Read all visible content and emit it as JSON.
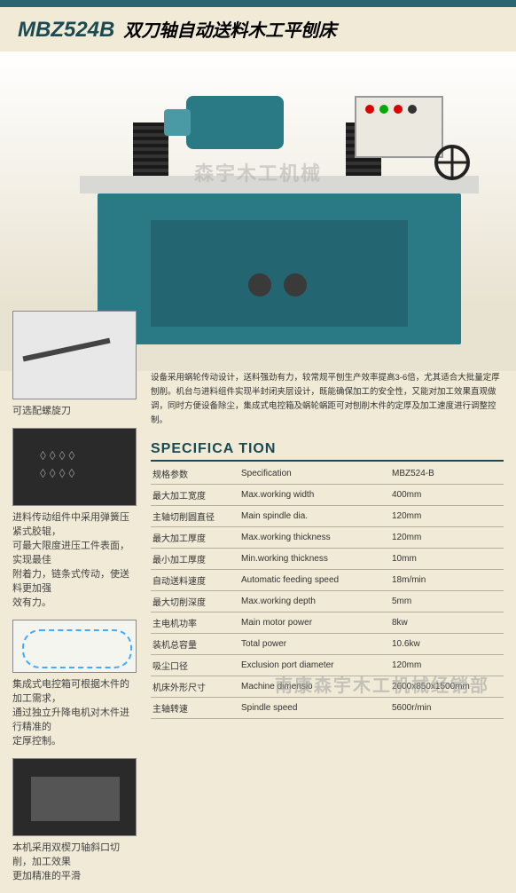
{
  "header": {
    "model": "MBZ524B",
    "title": "双刀轴自动送料木工平刨床"
  },
  "watermarks": {
    "top": "森宇木工机械",
    "bottom": "南康森宇木工机械经销部"
  },
  "sidebar": {
    "thumb1_caption": "可选配螺旋刀",
    "desc2a": "进料传动组件中采用弹簧压紧式胶辊，",
    "desc2b": "可最大限度进压工件表面，实现最佳",
    "desc2c": "附着力，链条式传动，使送料更加强",
    "desc2d": "效有力。",
    "desc3a": "集成式电控箱可根据木件的加工需求，",
    "desc3b": "通过独立升降电机对木件进行精准的",
    "desc3c": "定厚控制。",
    "desc4a": "本机采用双楔刀轴斜口切削，加工效果",
    "desc4b": "更加精准的平滑"
  },
  "description": "设备采用蜗轮传动设计，送料强劲有力，较常规平刨生产效率提高3-6倍，尤其适合大批量定厚刨削。机台与进料组件实现半封闭夹层设计，既能确保加工的安全性，又能对加工效果直观做调，同时方便设备除尘，集成式电控箱及蜗轮蜗距可对刨削木件的定厚及加工速度进行调整控制。",
  "spec": {
    "heading": "SPECIFICA TION",
    "rows": [
      {
        "zh": "规格参数",
        "en": "Specification",
        "val": "MBZ524-B"
      },
      {
        "zh": "最大加工宽度",
        "en": "Max.working width",
        "val": "400mm"
      },
      {
        "zh": "主轴切削圆直径",
        "en": "Main spindle dia.",
        "val": "120mm"
      },
      {
        "zh": "最大加工厚度",
        "en": "Max.working thickness",
        "val": "120mm"
      },
      {
        "zh": "最小加工厚度",
        "en": "Min.working thickness",
        "val": "10mm"
      },
      {
        "zh": "自动送料速度",
        "en": "Automatic feeding speed",
        "val": "18m/min"
      },
      {
        "zh": "最大切削深度",
        "en": "Max.working depth",
        "val": "5mm"
      },
      {
        "zh": "主电机功率",
        "en": "Main motor power",
        "val": "8kw"
      },
      {
        "zh": "装机总容量",
        "en": "Total power",
        "val": "10.6kw"
      },
      {
        "zh": "吸尘口径",
        "en": "Exclusion port diameter",
        "val": "120mm"
      },
      {
        "zh": "机床外形尺寸",
        "en": "Machine dimensio",
        "val": "2600x850x1500mm"
      },
      {
        "zh": "主轴转速",
        "en": "Spindle speed",
        "val": "5600r/min"
      }
    ]
  }
}
